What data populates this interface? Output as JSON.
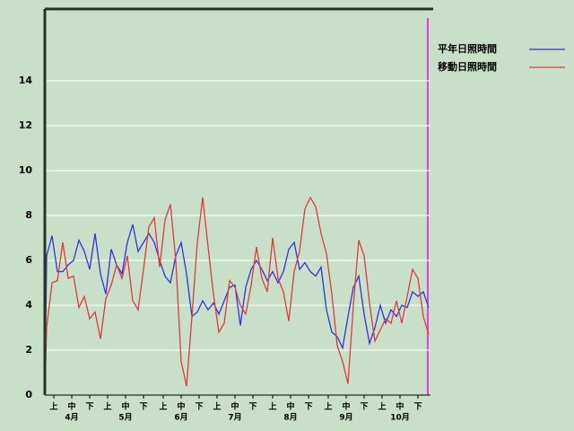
{
  "chart_data": {
    "type": "line",
    "x": [
      0,
      1,
      4,
      7,
      10,
      13,
      16,
      19,
      22,
      25,
      28,
      31,
      34,
      37,
      40,
      43,
      46,
      49,
      52,
      55,
      58,
      61,
      64,
      67,
      70,
      73,
      76,
      79,
      82,
      85,
      88,
      91,
      94,
      97,
      100,
      103,
      106,
      109,
      112,
      115,
      118,
      121,
      124,
      127,
      130,
      133,
      136,
      139,
      142,
      145,
      148,
      151,
      154,
      157,
      160,
      163,
      166,
      169,
      172,
      175,
      178,
      181,
      184,
      187,
      190,
      193,
      196,
      199,
      202,
      205,
      208,
      211,
      214
    ],
    "series": [
      {
        "name": "平年日照時間",
        "color": "#3333dd",
        "values": [
          0,
          6.2,
          7.1,
          5.5,
          5.5,
          5.8,
          6.0,
          6.9,
          6.4,
          5.6,
          7.2,
          5.4,
          4.5,
          6.5,
          5.8,
          5.4,
          6.8,
          7.6,
          6.4,
          6.8,
          7.2,
          6.8,
          6.0,
          5.3,
          5.0,
          6.2,
          6.8,
          5.4,
          3.5,
          3.7,
          4.2,
          3.8,
          4.1,
          3.6,
          4.2,
          4.8,
          4.9,
          3.1,
          4.8,
          5.6,
          6.0,
          5.6,
          5.1,
          5.5,
          5.0,
          5.5,
          6.5,
          6.8,
          5.6,
          5.9,
          5.5,
          5.3,
          5.7,
          3.8,
          2.8,
          2.6,
          2.1,
          3.5,
          4.8,
          5.3,
          3.6,
          2.3,
          3.0,
          4.0,
          3.2,
          3.8,
          3.5,
          4.0,
          3.9,
          4.6,
          4.4,
          4.6,
          3.9
        ]
      },
      {
        "name": "移動日照時間",
        "color": "#e03c3c",
        "values": [
          0,
          3.0,
          5.0,
          5.1,
          6.8,
          5.2,
          5.3,
          3.9,
          4.4,
          3.4,
          3.7,
          2.5,
          4.3,
          4.9,
          5.8,
          5.2,
          6.2,
          4.2,
          3.8,
          5.6,
          7.5,
          7.9,
          5.7,
          7.8,
          8.5,
          6.0,
          1.5,
          0.4,
          3.5,
          6.8,
          8.8,
          6.6,
          4.5,
          2.8,
          3.2,
          5.1,
          4.8,
          4.0,
          3.6,
          4.9,
          6.6,
          5.2,
          4.6,
          7.0,
          5.2,
          4.6,
          3.3,
          5.5,
          6.4,
          8.3,
          8.8,
          8.4,
          7.2,
          6.3,
          4.5,
          2.2,
          1.5,
          0.5,
          4.0,
          6.9,
          6.2,
          4.1,
          2.4,
          2.9,
          3.4,
          3.2,
          4.2,
          3.2,
          4.4,
          5.6,
          5.2,
          3.5,
          2.7
        ]
      }
    ],
    "xlim": [
      0,
      215
    ],
    "xticks": [
      {
        "value": 5,
        "label": "上"
      },
      {
        "value": 15,
        "label": "中"
      },
      {
        "value": 25,
        "label": "下"
      },
      {
        "value": 35,
        "label": "上"
      },
      {
        "value": 45,
        "label": "中"
      },
      {
        "value": 55,
        "label": "下"
      },
      {
        "value": 66,
        "label": "上"
      },
      {
        "value": 76,
        "label": "中"
      },
      {
        "value": 86,
        "label": "下"
      },
      {
        "value": 96,
        "label": "上"
      },
      {
        "value": 106,
        "label": "中"
      },
      {
        "value": 116,
        "label": "下"
      },
      {
        "value": 127,
        "label": "上"
      },
      {
        "value": 137,
        "label": "中"
      },
      {
        "value": 147,
        "label": "下"
      },
      {
        "value": 158,
        "label": "上"
      },
      {
        "value": 168,
        "label": "中"
      },
      {
        "value": 178,
        "label": "下"
      },
      {
        "value": 188,
        "label": "上"
      },
      {
        "value": 198,
        "label": "中"
      },
      {
        "value": 208,
        "label": "下"
      }
    ],
    "month_labels": [
      {
        "value": 15,
        "label": "4月"
      },
      {
        "value": 45,
        "label": "5月"
      },
      {
        "value": 76,
        "label": "6月"
      },
      {
        "value": 106,
        "label": "7月"
      },
      {
        "value": 137,
        "label": "8月"
      },
      {
        "value": 168,
        "label": "9月"
      },
      {
        "value": 198,
        "label": "10月"
      }
    ],
    "ylim": [
      0,
      17.2
    ],
    "yticks": [
      0,
      2,
      4,
      6,
      8,
      10,
      12,
      14
    ],
    "grid": true
  }
}
